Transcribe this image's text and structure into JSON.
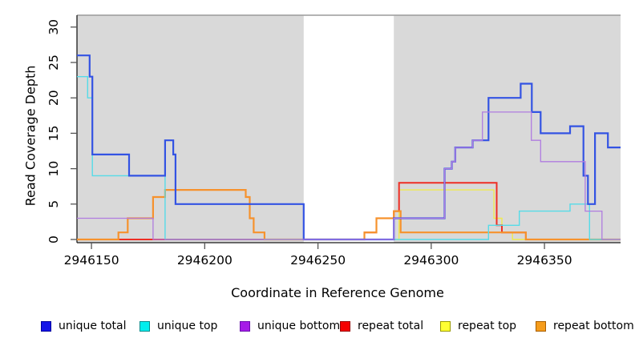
{
  "titles": {
    "x_axis": "Coordinate in Reference Genome",
    "y_axis": "Read Coverage Depth"
  },
  "chart_data": {
    "type": "line",
    "subtype": "step-coverage-plot",
    "title": "",
    "xlabel": "Coordinate in Reference Genome",
    "ylabel": "Read Coverage Depth",
    "xlim": [
      2946143.6,
      2946383.6
    ],
    "ylim": [
      0,
      31.7
    ],
    "x_ticks": [
      2946150,
      2946200,
      2946250,
      2946300,
      2946350
    ],
    "y_ticks": [
      0,
      5,
      10,
      15,
      20,
      25,
      30
    ],
    "grid": false,
    "legend_position": "bottom",
    "plot_background": "#ffffff",
    "shaded_regions": [
      {
        "x0": 2946143.6,
        "x1": 2946243.7,
        "color": "#d9d9d9"
      },
      {
        "x0": 2946283.5,
        "x1": 2946383.6,
        "color": "#d9d9d9"
      }
    ],
    "series": [
      {
        "id": "repeat-top",
        "name": "repeat top",
        "color": "#efe94f",
        "width": 1.4,
        "steps": [
          [
            2946143.6,
            0
          ],
          [
            2946285.8,
            7
          ],
          [
            2946327.7,
            3
          ],
          [
            2946331.2,
            1
          ],
          [
            2946335.9,
            0
          ]
        ]
      },
      {
        "id": "repeat-total",
        "name": "repeat total",
        "color": "#ee2e24",
        "width": 2,
        "steps": [
          [
            2946143.6,
            0
          ],
          [
            2946270.5,
            1
          ],
          [
            2946275.8,
            3
          ],
          [
            2946283.5,
            4
          ],
          [
            2946285.8,
            8
          ],
          [
            2946328.9,
            2
          ],
          [
            2946331.2,
            1
          ],
          [
            2946341.8,
            0
          ]
        ]
      },
      {
        "id": "repeat-bottom",
        "name": "repeat bottom",
        "color": "#f6922d",
        "width": 2.2,
        "steps": [
          [
            2946143.6,
            0
          ],
          [
            2946161.9,
            1
          ],
          [
            2946166.0,
            3
          ],
          [
            2946177.2,
            6
          ],
          [
            2946182.5,
            7
          ],
          [
            2946218.1,
            6
          ],
          [
            2946219.9,
            3
          ],
          [
            2946221.6,
            1
          ],
          [
            2946226.4,
            0
          ],
          [
            2946270.5,
            1
          ],
          [
            2946275.8,
            3
          ],
          [
            2946283.5,
            4
          ],
          [
            2946286.5,
            1
          ],
          [
            2946341.8,
            0
          ]
        ]
      },
      {
        "id": "unique-top",
        "name": "unique top",
        "color": "#55dbe8",
        "width": 1.4,
        "steps": [
          [
            2946143.6,
            23
          ],
          [
            2946148.3,
            20
          ],
          [
            2946150.4,
            9
          ],
          [
            2946182.5,
            0
          ],
          [
            2946325.3,
            2
          ],
          [
            2946338.9,
            4
          ],
          [
            2946361.3,
            5
          ],
          [
            2946369.9,
            0
          ]
        ]
      },
      {
        "id": "unique-total",
        "name": "unique total",
        "color": "#3353e3",
        "width": 2.2,
        "steps": [
          [
            2946143.6,
            26
          ],
          [
            2946149.2,
            23
          ],
          [
            2946150.4,
            12
          ],
          [
            2946166.6,
            9
          ],
          [
            2946182.5,
            14
          ],
          [
            2946186.1,
            12
          ],
          [
            2946187.1,
            5
          ],
          [
            2946243.7,
            0
          ],
          [
            2946283.5,
            3
          ],
          [
            2946305.9,
            10
          ],
          [
            2946309.1,
            11
          ],
          [
            2946310.6,
            13
          ],
          [
            2946318.3,
            14
          ],
          [
            2946325.3,
            20
          ],
          [
            2946339.5,
            22
          ],
          [
            2946344.4,
            18
          ],
          [
            2946348.3,
            15
          ],
          [
            2946361.3,
            16
          ],
          [
            2946367.2,
            9
          ],
          [
            2946369.2,
            5
          ],
          [
            2946372.3,
            15
          ],
          [
            2946378.0,
            13
          ]
        ]
      },
      {
        "id": "unique-bottom",
        "name": "unique bottom",
        "color": "#b07ce0",
        "width": 1.3,
        "steps": [
          [
            2946143.6,
            3
          ],
          [
            2946177.2,
            0
          ],
          [
            2946283.5,
            3
          ],
          [
            2946305.9,
            10
          ],
          [
            2946309.1,
            11
          ],
          [
            2946310.6,
            13
          ],
          [
            2946318.3,
            14
          ],
          [
            2946322.6,
            18
          ],
          [
            2946344.2,
            14
          ],
          [
            2946348.3,
            11
          ],
          [
            2946368.0,
            4
          ],
          [
            2946375.4,
            0
          ]
        ]
      }
    ]
  },
  "legend": {
    "items": [
      {
        "label": "unique total",
        "fill": "#1414e8",
        "border": "#00009c"
      },
      {
        "label": "unique top",
        "fill": "#00eeee",
        "border": "#008b8b"
      },
      {
        "label": "unique bottom",
        "fill": "#a61ce8",
        "border": "#6a0dad"
      },
      {
        "label": "repeat total",
        "fill": "#f50000",
        "border": "#990000"
      },
      {
        "label": "repeat top",
        "fill": "#ffff33",
        "border": "#9a9a00"
      },
      {
        "label": "repeat bottom",
        "fill": "#f59c1b",
        "border": "#a85e00"
      }
    ]
  }
}
